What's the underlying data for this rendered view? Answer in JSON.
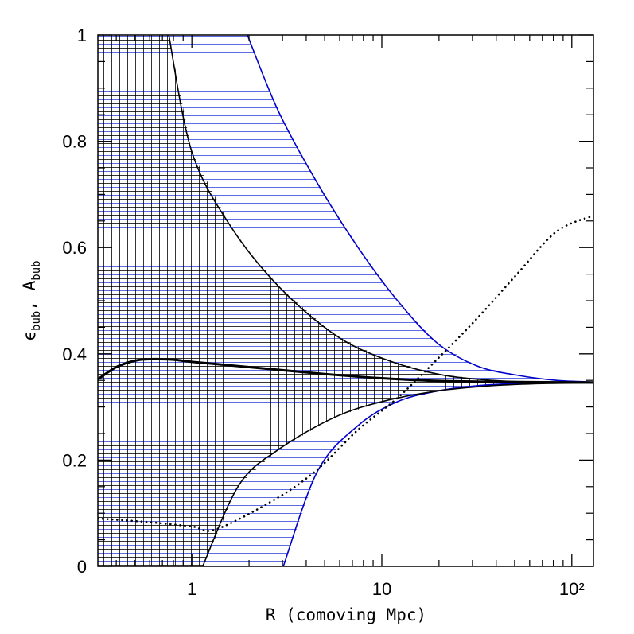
{
  "chart_data": {
    "type": "line",
    "xlabel": "R (comoving Mpc)",
    "ylabel": [
      {
        "text": "ϵ"
      },
      {
        "text": "bub",
        "sub": true
      },
      {
        "text": ", A"
      },
      {
        "text": "bub",
        "sub": true
      }
    ],
    "xscale": "log",
    "xlim": [
      0.32,
      130
    ],
    "ylim": [
      0,
      1
    ],
    "xticks": [
      1,
      10,
      {
        "value": 100,
        "label": "10²"
      }
    ],
    "xminorticks": [
      0.4,
      0.5,
      0.6,
      0.7,
      0.8,
      0.9,
      2,
      3,
      4,
      5,
      6,
      7,
      8,
      9,
      20,
      30,
      40,
      50,
      60,
      70,
      80,
      90
    ],
    "yticks": [
      0,
      0.2,
      0.4,
      0.6,
      0.8,
      1
    ],
    "yminorticks": [
      0.05,
      0.1,
      0.15,
      0.25,
      0.3,
      0.35,
      0.45,
      0.5,
      0.55,
      0.65,
      0.7,
      0.75,
      0.85,
      0.9,
      0.95
    ],
    "series": [
      {
        "color": "#0000cc",
        "width": 1.6,
        "band": "upper",
        "hatch": "blue",
        "x": [
          1.96,
          2.86,
          4.6,
          7.5,
          12.1,
          19.6,
          31.8,
          51,
          83,
          130
        ],
        "values": [
          1,
          0.856,
          0.72,
          0.6,
          0.5,
          0.42,
          0.377,
          0.36,
          0.35,
          0.347
        ]
      },
      {
        "color": "#0000cc",
        "width": 1.6,
        "band": "lower",
        "hatch": "blue",
        "x": [
          3.03,
          4.6,
          7.5,
          12.1,
          19.6,
          31.8,
          51,
          83,
          130
        ],
        "values": [
          0,
          0.18,
          0.265,
          0.31,
          0.33,
          0.34,
          0.344,
          0.345,
          0.346
        ]
      },
      {
        "color": "#000000",
        "width": 1.6,
        "band": "upper",
        "hatch": "black",
        "x": [
          0.756,
          1,
          1.6,
          2.86,
          5.6,
          10,
          19.6,
          38,
          70,
          130
        ],
        "values": [
          1,
          0.78,
          0.64,
          0.527,
          0.437,
          0.392,
          0.362,
          0.35,
          0.347,
          0.346
        ]
      },
      {
        "color": "#000000",
        "width": 1.6,
        "band": "lower",
        "hatch": "black",
        "x": [
          1.14,
          1.77,
          2.86,
          5.6,
          10,
          19.6,
          38,
          70,
          130
        ],
        "values": [
          0,
          0.153,
          0.22,
          0.28,
          0.31,
          0.33,
          0.34,
          0.344,
          0.345
        ]
      },
      {
        "color": "#000000",
        "width": 3,
        "x": [
          0.32,
          0.4,
          0.5,
          0.6,
          0.8,
          1,
          2,
          5,
          10,
          20,
          50,
          130
        ],
        "values": [
          0.352,
          0.375,
          0.387,
          0.39,
          0.389,
          0.385,
          0.375,
          0.362,
          0.354,
          0.349,
          0.347,
          0.346
        ]
      },
      {
        "color": "#000000",
        "width": 2.6,
        "style": "dotted",
        "x": [
          0.32,
          0.6,
          1,
          1.35,
          2.86,
          4.6,
          7.5,
          12.1,
          19.6,
          31.8,
          51.5,
          83,
          130
        ],
        "values": [
          0.09,
          0.083,
          0.075,
          0.07,
          0.13,
          0.183,
          0.257,
          0.317,
          0.39,
          0.467,
          0.55,
          0.63,
          0.66
        ]
      }
    ]
  }
}
